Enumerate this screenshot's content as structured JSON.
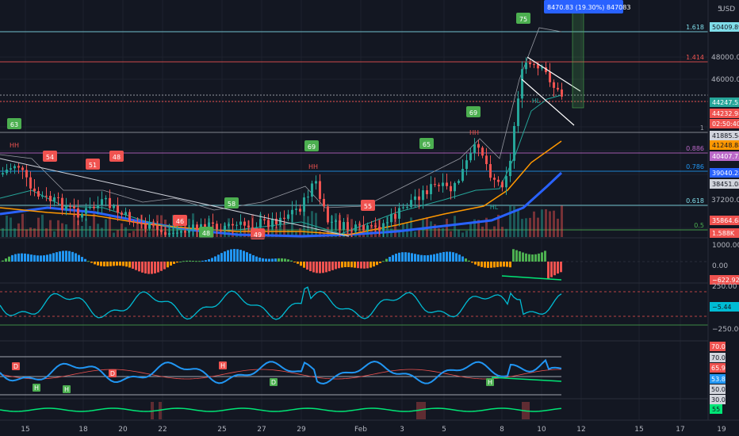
{
  "colors": {
    "bg": "#131722",
    "grid": "#1e222d",
    "up": "#26a69a",
    "down": "#ef5350",
    "green_tag": "#4caf50",
    "red_tag": "#f05350",
    "blue": "#2962ff",
    "orange": "#ff9800",
    "fib_cyan": "#80deea",
    "fib_red": "#ef5350",
    "fib_purple": "#ba68c8",
    "fib_blue": "#2196f3",
    "fib_green": "#4caf50",
    "cci_cyan": "#00bcd4",
    "rsi_blue": "#2196f3",
    "bright_green": "#00e676"
  },
  "price_axis": {
    "currency": "USD",
    "ticks": [
      "50000.00",
      "48000.00",
      "46000.00",
      "44000.00",
      "37200.00"
    ],
    "top_label": "5"
  },
  "price_labels": [
    {
      "text": "50409.89",
      "kind": "fib_cyan"
    },
    {
      "text": "44247.53",
      "kind": "up"
    },
    {
      "text": "44232.98",
      "kind": "down"
    },
    {
      "text": "02:50:40",
      "kind": "down"
    },
    {
      "text": "41885.54",
      "kind": "white"
    },
    {
      "text": "41248.88",
      "kind": "orange"
    },
    {
      "text": "40407.73",
      "kind": "fib_purple"
    },
    {
      "text": "39040.28",
      "kind": "blue"
    },
    {
      "text": "38451.08",
      "kind": "white"
    },
    {
      "text": "35864.68",
      "kind": "down"
    },
    {
      "text": "1.588K",
      "kind": "down"
    }
  ],
  "fib_levels": [
    {
      "ratio": "1.618"
    },
    {
      "ratio": "1.414"
    },
    {
      "ratio": "1"
    },
    {
      "ratio": "0.886"
    },
    {
      "ratio": "0.786"
    },
    {
      "ratio": "0.618"
    },
    {
      "ratio": "0.5"
    }
  ],
  "measure_label": "8470.83 (19.30%) 847083",
  "tags": {
    "green": [
      "63",
      "69",
      "65",
      "69",
      "75",
      "58",
      "48"
    ],
    "red": [
      "54",
      "51",
      "48",
      "46",
      "55",
      "49"
    ]
  },
  "pattern_labels": [
    "HL",
    "HL",
    "HH",
    "HH",
    "HH"
  ],
  "macd_axis": {
    "ticks": [
      "1000.00",
      "0.00"
    ],
    "value": "−622.92"
  },
  "cci_axis": {
    "ticks": [
      "250.00",
      "−250.00"
    ],
    "value": "−5.44"
  },
  "rsi_axis": {
    "ticks": [
      "70.0",
      "70.0",
      "65.9",
      "53.8",
      "50.0",
      "30.0"
    ]
  },
  "rsi_markers": [
    "D",
    "H",
    "H",
    "D",
    "H",
    "D",
    "H"
  ],
  "bottom_axis": {
    "value": "55"
  },
  "time_axis": [
    "15",
    "18",
    "20",
    "22",
    "25",
    "27",
    "29",
    "Feb",
    "3",
    "5",
    "8",
    "10",
    "12",
    "15",
    "17",
    "19"
  ]
}
